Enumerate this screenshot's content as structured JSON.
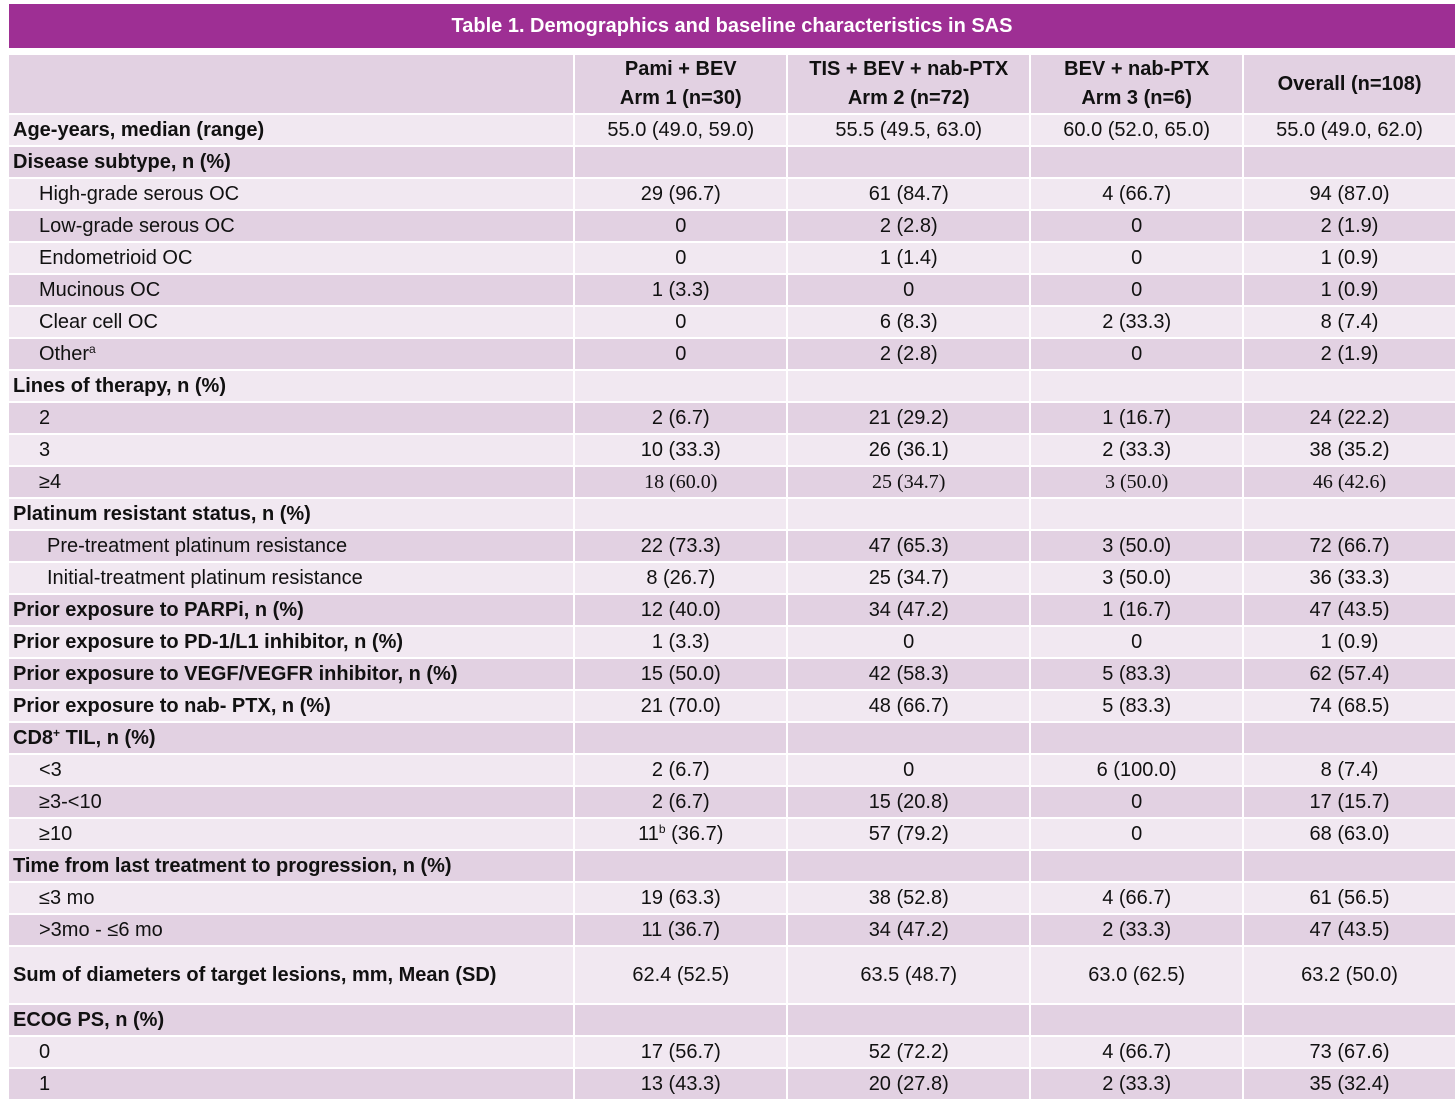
{
  "title": "Table 1. Demographics and baseline characteristics in SAS",
  "columns": [
    {
      "line1": "",
      "line2": ""
    },
    {
      "line1": "Pami + BEV",
      "line2": "Arm 1 (n=30)"
    },
    {
      "line1": "TIS + BEV + nab-PTX",
      "line2": "Arm 2 (n=72)"
    },
    {
      "line1": "BEV + nab-PTX",
      "line2": "Arm 3 (n=6)"
    },
    {
      "line1": "Overall (n=108)",
      "line2": ""
    }
  ],
  "rows": [
    {
      "label": "Age-years, median (range)",
      "bold": true,
      "indent": 0,
      "values": [
        "55.0 (49.0, 59.0)",
        "55.5 (49.5, 63.0)",
        "60.0 (52.0, 65.0)",
        "55.0 (49.0, 62.0)"
      ]
    },
    {
      "label": "Disease subtype, n (%)",
      "bold": true,
      "indent": 0,
      "values": [
        "",
        "",
        "",
        ""
      ]
    },
    {
      "label": "High-grade serous OC",
      "bold": false,
      "indent": 1,
      "values": [
        "29 (96.7)",
        "61 (84.7)",
        "4 (66.7)",
        "94 (87.0)"
      ]
    },
    {
      "label": "Low-grade serous OC",
      "bold": false,
      "indent": 1,
      "values": [
        "0",
        "2 (2.8)",
        "0",
        "2 (1.9)"
      ]
    },
    {
      "label": "Endometrioid OC",
      "bold": false,
      "indent": 1,
      "values": [
        "0",
        "1 (1.4)",
        "0",
        "1 (0.9)"
      ]
    },
    {
      "label": "Mucinous OC",
      "bold": false,
      "indent": 1,
      "values": [
        "1 (3.3)",
        "0",
        "0",
        "1 (0.9)"
      ]
    },
    {
      "label": "Clear cell OC",
      "bold": false,
      "indent": 1,
      "values": [
        "0",
        "6 (8.3)",
        "2 (33.3)",
        "8 (7.4)"
      ]
    },
    {
      "label": "Other",
      "sup": "a",
      "bold": false,
      "indent": 1,
      "values": [
        "0",
        "2 (2.8)",
        "0",
        "2 (1.9)"
      ]
    },
    {
      "label": "Lines of therapy, n (%)",
      "bold": true,
      "indent": 0,
      "values": [
        "",
        "",
        "",
        ""
      ]
    },
    {
      "label": "2",
      "bold": false,
      "indent": 1,
      "values": [
        "2 (6.7)",
        "21 (29.2)",
        "1 (16.7)",
        "24 (22.2)"
      ]
    },
    {
      "label": "3",
      "bold": false,
      "indent": 1,
      "values": [
        "10 (33.3)",
        "26 (36.1)",
        "2 (33.3)",
        "38 (35.2)"
      ]
    },
    {
      "label": "≥4",
      "bold": false,
      "indent": 1,
      "serif": true,
      "values": [
        "18 (60.0)",
        "25 (34.7)",
        "3 (50.0)",
        "46 (42.6)"
      ]
    },
    {
      "label": "Platinum resistant status, n (%)",
      "bold": true,
      "indent": 0,
      "values": [
        "",
        "",
        "",
        ""
      ]
    },
    {
      "label": "Pre-treatment platinum resistance",
      "bold": false,
      "indent": 2,
      "values": [
        "22 (73.3)",
        "47 (65.3)",
        "3 (50.0)",
        "72 (66.7)"
      ]
    },
    {
      "label": "Initial-treatment platinum resistance",
      "bold": false,
      "indent": 2,
      "values": [
        "8 (26.7)",
        "25 (34.7)",
        "3 (50.0)",
        "36 (33.3)"
      ]
    },
    {
      "label": "Prior exposure to PARPi, n (%)",
      "bold": true,
      "indent": 0,
      "values": [
        "12 (40.0)",
        "34 (47.2)",
        "1 (16.7)",
        "47 (43.5)"
      ]
    },
    {
      "label": "Prior exposure to PD-1/L1 inhibitor, n (%)",
      "bold": true,
      "indent": 0,
      "values": [
        "1 (3.3)",
        "0",
        "0",
        "1 (0.9)"
      ]
    },
    {
      "label": "Prior exposure to VEGF/VEGFR inhibitor, n (%)",
      "bold": true,
      "indent": 0,
      "values": [
        "15 (50.0)",
        "42 (58.3)",
        "5 (83.3)",
        "62 (57.4)"
      ]
    },
    {
      "label": "Prior exposure to nab- PTX, n (%)",
      "bold": true,
      "indent": 0,
      "values": [
        "21 (70.0)",
        "48 (66.7)",
        "5 (83.3)",
        "74 (68.5)"
      ]
    },
    {
      "label": "CD8",
      "sup": "+",
      "label_after": " TIL, n (%)",
      "bold": true,
      "indent": 0,
      "values": [
        "",
        "",
        "",
        ""
      ]
    },
    {
      "label": "<3",
      "bold": false,
      "indent": 1,
      "values": [
        "2 (6.7)",
        "0",
        "6 (100.0)",
        "8 (7.4)"
      ]
    },
    {
      "label": "≥3-<10",
      "bold": false,
      "indent": 1,
      "values": [
        "2 (6.7)",
        "15 (20.8)",
        "0",
        "17 (15.7)"
      ]
    },
    {
      "label": "≥10",
      "bold": false,
      "indent": 1,
      "values": [
        "11",
        "57 (79.2)",
        "0",
        "68 (63.0)"
      ],
      "first_value_sup": "b",
      "first_value_after": " (36.7)"
    },
    {
      "label": "Time from last treatment to progression, n (%)",
      "bold": true,
      "indent": 0,
      "values": [
        "",
        "",
        "",
        ""
      ]
    },
    {
      "label": "≤3 mo",
      "bold": false,
      "indent": 1,
      "values": [
        "19 (63.3)",
        "38 (52.8)",
        "4 (66.7)",
        "61 (56.5)"
      ]
    },
    {
      "label": ">3mo - ≤6 mo",
      "bold": false,
      "indent": 1,
      "values": [
        "11 (36.7)",
        "34 (47.2)",
        "2 (33.3)",
        "47 (43.5)"
      ]
    },
    {
      "label": "Sum of diameters of target lesions, mm, Mean (SD)",
      "bold": true,
      "indent": 0,
      "tall": true,
      "values": [
        "62.4 (52.5)",
        "63.5 (48.7)",
        "63.0 (62.5)",
        "63.2 (50.0)"
      ]
    },
    {
      "label": "ECOG PS, n (%)",
      "bold": true,
      "indent": 0,
      "values": [
        "",
        "",
        "",
        ""
      ]
    },
    {
      "label": "0",
      "bold": false,
      "indent": 1,
      "values": [
        "17 (56.7)",
        "52 (72.2)",
        "4 (66.7)",
        "73 (67.6)"
      ]
    },
    {
      "label": "1",
      "bold": false,
      "indent": 1,
      "values": [
        "13 (43.3)",
        "20 (27.8)",
        "2 (33.3)",
        "35 (32.4)"
      ]
    }
  ],
  "colors": {
    "title_bg": "#9e2f94",
    "row_dark": "#e2d1e2",
    "row_light": "#f1e8f1"
  }
}
